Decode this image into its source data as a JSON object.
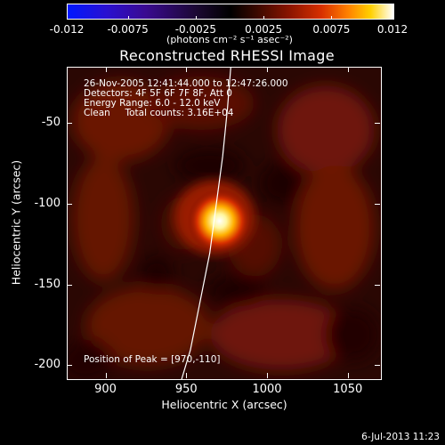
{
  "colorbar": {
    "tick_labels": [
      "-0.012",
      "-0.0075",
      "-0.0025",
      "0.0025",
      "0.0075",
      "0.012"
    ],
    "units": "(photons cm⁻² s⁻¹ asec⁻²)",
    "range": [
      -0.012,
      0.012
    ],
    "colormap": "blue-purple-black-red-yellow-white"
  },
  "title": "Reconstructed RHESSI Image",
  "info": {
    "time_range": "26-Nov-2005 12:41:44.000 to 12:47:26.000",
    "detectors": "Detectors: 4F 5F 6F 7F 8F, Att 0",
    "energy": "Energy Range: 6.0 - 12.0 keV",
    "clean": "Clean     Total counts: 3.16E+04",
    "peak": "Position of Peak = [970,-110]"
  },
  "axes": {
    "xlabel": "Heliocentric X (arcsec)",
    "ylabel": "Heliocentric Y (arcsec)",
    "xticks": [
      "900",
      "950",
      "1000",
      "1050"
    ],
    "yticks": [
      "-50",
      "-100",
      "-150",
      "-200"
    ]
  },
  "timestamp": "6-Jul-2013 11:23",
  "chart_data": {
    "type": "heatmap",
    "title": "Reconstructed RHESSI Image",
    "xlabel": "Heliocentric X (arcsec)",
    "ylabel": "Heliocentric Y (arcsec)",
    "xlim": [
      876,
      1070
    ],
    "ylim": [
      -208,
      -15
    ],
    "xticks": [
      900,
      950,
      1000,
      1050
    ],
    "yticks": [
      -50,
      -100,
      -150,
      -200
    ],
    "color_range": [
      -0.012,
      0.012
    ],
    "peak_position": [
      970,
      -110
    ],
    "limb_curve": [
      [
        946,
        -210
      ],
      [
        952,
        -190
      ],
      [
        958,
        -160
      ],
      [
        964,
        -130
      ],
      [
        968,
        -100
      ],
      [
        972,
        -70
      ],
      [
        975,
        -40
      ],
      [
        977,
        -15
      ]
    ],
    "sources": [
      {
        "x": 970,
        "y": -110,
        "intensity": 0.012,
        "sigma": 10
      }
    ]
  }
}
